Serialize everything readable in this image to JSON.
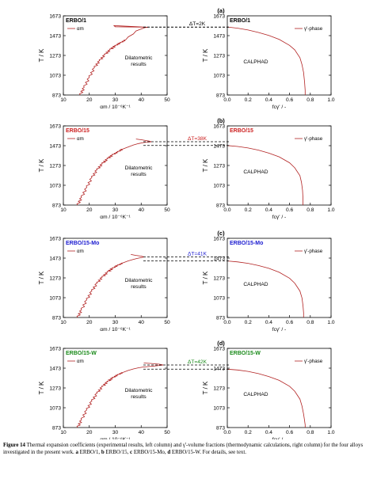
{
  "figure": {
    "caption": {
      "label": "Figure 14",
      "text": " Thermal expansion coefficients (experimental results, left column) and γ'-volume fractions (thermodynamic calculations, right column) for the four alloys investigated in the present work. ",
      "parts": [
        {
          "tag": "a",
          "text": " ERBO/1, "
        },
        {
          "tag": "b",
          "text": " ERBO/15, "
        },
        {
          "tag": "c",
          "text": " ERBO/15-Mo, "
        },
        {
          "tag": "d",
          "text": " ERBO/15-W. For details, see text."
        }
      ]
    },
    "y_axis_label": "T / K",
    "y_ticks": [
      "873",
      "1073",
      "1273",
      "1473",
      "1673"
    ],
    "left_x_ticks": [
      "10",
      "20",
      "30",
      "40",
      "50"
    ],
    "right_x_ticks": [
      "0.0",
      "0.2",
      "0.4",
      "0.6",
      "0.8",
      "1.0"
    ],
    "left_x_label": "αm / 10⁻⁶K⁻¹",
    "right_x_label": "fcγ' / -",
    "left_legend": "αm",
    "right_legend": "γ'-phase",
    "left_note_1": "Dilatometric",
    "left_note_2": "results",
    "right_note": "CALPHAD",
    "colors": {
      "curve": "#b22222",
      "dashed": "#000000"
    }
  },
  "chart_data": [
    {
      "type": "line",
      "panel": "(a)",
      "alloy": "ERBO/1",
      "alloy_color": "#000000",
      "delta_t": "ΔT=2K",
      "left": {
        "xlabel": "αm / 10⁻⁶K⁻¹",
        "ylabel": "T / K",
        "xlim": [
          10,
          50
        ],
        "ylim": [
          873,
          1673
        ],
        "series": [
          {
            "name": "αm",
            "x": [
              16.5,
              18,
              20,
              22,
              24,
              26,
              28,
              30,
              32,
              34,
              35,
              37,
              38,
              40,
              41.5,
              42.5,
              42.5,
              30,
              29.5,
              42.5
            ],
            "y": [
              873,
              950,
              1050,
              1150,
              1220,
              1280,
              1330,
              1370,
              1400,
              1430,
              1460,
              1490,
              1520,
              1540,
              1555,
              1557,
              1558,
              1563,
              1575,
              1558
            ]
          }
        ]
      },
      "right": {
        "xlabel": "fcγ' / -",
        "ylabel": "T / K",
        "xlim": [
          0,
          1
        ],
        "ylim": [
          873,
          1673
        ],
        "series": [
          {
            "name": "γ'-phase",
            "x": [
              0.0,
              0.1,
              0.2,
              0.3,
              0.4,
              0.5,
              0.6,
              0.65,
              0.7,
              0.72,
              0.735,
              0.745,
              0.75,
              0.75
            ],
            "y": [
              1560,
              1548,
              1530,
              1505,
              1475,
              1435,
              1375,
              1330,
              1250,
              1180,
              1100,
              1000,
              920,
              873
            ]
          }
        ]
      },
      "dashed_temps": [
        1558,
        1560
      ]
    },
    {
      "type": "line",
      "panel": "(b)",
      "alloy": "ERBO/15",
      "alloy_color": "#cc2020",
      "delta_t": "ΔT=38K",
      "left": {
        "xlabel": "αm / 10⁻⁶K⁻¹",
        "ylabel": "T / K",
        "xlim": [
          10,
          50
        ],
        "ylim": [
          873,
          1673
        ],
        "series": [
          {
            "name": "αm",
            "x": [
              15.5,
              17,
              19,
              21,
              23,
              25,
              27,
              29,
              31,
              33,
              35,
              37,
              39,
              41,
              43,
              44,
              43,
              40,
              38
            ],
            "y": [
              873,
              950,
              1050,
              1150,
              1230,
              1290,
              1340,
              1380,
              1410,
              1440,
              1460,
              1480,
              1495,
              1505,
              1510,
              1512,
              1520,
              1533,
              1540
            ]
          }
        ]
      },
      "right": {
        "xlabel": "fcγ' / -",
        "ylabel": "T / K",
        "xlim": [
          0,
          1
        ],
        "ylim": [
          873,
          1673
        ],
        "series": [
          {
            "name": "γ'-phase",
            "x": [
              0.0,
              0.1,
              0.2,
              0.3,
              0.4,
              0.5,
              0.6,
              0.65,
              0.7,
              0.715,
              0.725,
              0.73,
              0.73
            ],
            "y": [
              1475,
              1465,
              1450,
              1428,
              1398,
              1360,
              1300,
              1250,
              1170,
              1100,
              1020,
              930,
              873
            ]
          }
        ]
      },
      "dashed_temps": [
        1513,
        1475
      ]
    },
    {
      "type": "line",
      "panel": "(c)",
      "alloy": "ERBO/15-Mo",
      "alloy_color": "#1a1ad0",
      "delta_t": "ΔT=41K",
      "left": {
        "xlabel": "αm / 10⁻⁶K⁻¹",
        "ylabel": "T / K",
        "xlim": [
          10,
          50
        ],
        "ylim": [
          873,
          1673
        ],
        "series": [
          {
            "name": "αm",
            "x": [
              15.5,
              17,
              19,
              21,
              23,
              25,
              27,
              29,
              31,
              33,
              35,
              37,
              38.5,
              40,
              41,
              40,
              38,
              36
            ],
            "y": [
              873,
              950,
              1050,
              1140,
              1220,
              1280,
              1330,
              1370,
              1400,
              1425,
              1445,
              1460,
              1470,
              1478,
              1485,
              1493,
              1500,
              1510
            ]
          }
        ]
      },
      "right": {
        "xlabel": "fcγ' / -",
        "ylabel": "T / K",
        "xlim": [
          0,
          1
        ],
        "ylim": [
          873,
          1673
        ],
        "series": [
          {
            "name": "γ'-phase",
            "x": [
              0.0,
              0.1,
              0.2,
              0.3,
              0.4,
              0.5,
              0.6,
              0.65,
              0.7,
              0.72,
              0.73,
              0.735,
              0.735
            ],
            "y": [
              1444,
              1435,
              1420,
              1398,
              1370,
              1330,
              1270,
              1220,
              1140,
              1070,
              990,
              920,
              873
            ]
          }
        ]
      },
      "dashed_temps": [
        1485,
        1444
      ]
    },
    {
      "type": "line",
      "panel": "(d)",
      "alloy": "ERBO/15-W",
      "alloy_color": "#1a8a1a",
      "delta_t": "ΔT=42K",
      "left": {
        "xlabel": "αm / 10⁻⁶K⁻¹",
        "ylabel": "T / K",
        "xlim": [
          10,
          50
        ],
        "ylim": [
          873,
          1673
        ],
        "series": [
          {
            "name": "αm",
            "x": [
              15.5,
              17,
              19,
              21,
              23,
              25,
              27,
              29,
              31,
              33,
              35,
              37,
              39,
              41,
              43,
              45,
              47,
              48.5,
              47,
              44,
              41
            ],
            "y": [
              873,
              950,
              1050,
              1140,
              1220,
              1285,
              1335,
              1375,
              1405,
              1430,
              1450,
              1465,
              1477,
              1485,
              1490,
              1495,
              1500,
              1505,
              1513,
              1520,
              1525
            ]
          }
        ]
      },
      "right": {
        "xlabel": "fcγ' / -",
        "ylabel": "T / K",
        "xlim": [
          0,
          1
        ],
        "ylim": [
          873,
          1673
        ],
        "series": [
          {
            "name": "γ'-phase",
            "x": [
              0.0,
              0.1,
              0.2,
              0.3,
              0.4,
              0.5,
              0.6,
              0.65,
              0.7,
              0.72,
              0.735,
              0.745,
              0.75,
              0.75
            ],
            "y": [
              1463,
              1455,
              1440,
              1418,
              1388,
              1350,
              1290,
              1240,
              1160,
              1090,
              1010,
              940,
              900,
              873
            ]
          }
        ]
      },
      "dashed_temps": [
        1505,
        1463
      ]
    }
  ]
}
